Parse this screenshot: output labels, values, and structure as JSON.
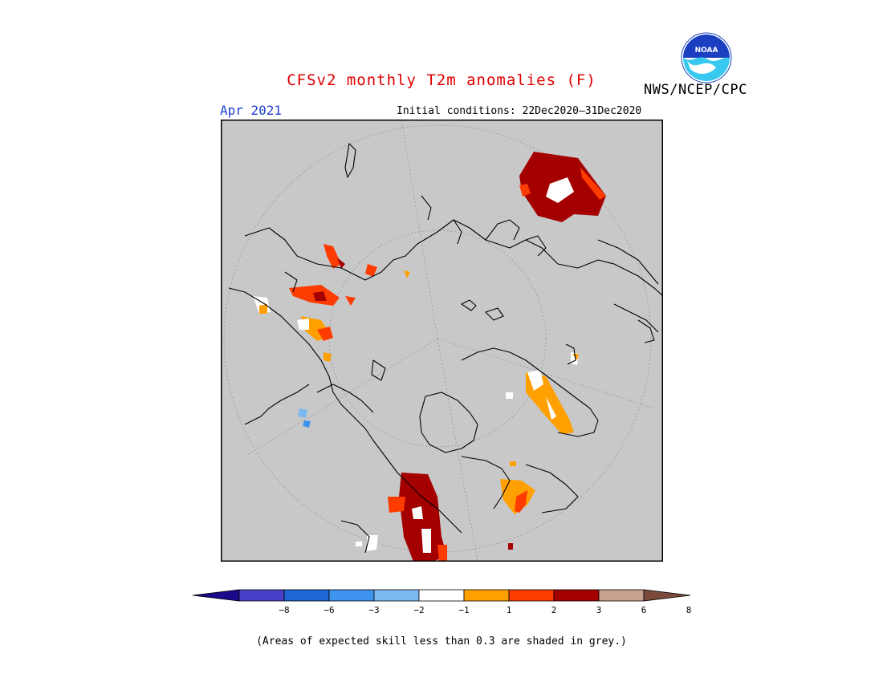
{
  "header": {
    "title": "CFSv2 monthly T2m anomalies (F)",
    "month": "Apr 2021",
    "initial_conditions": "Initial conditions: 22Dec2020–31Dec2020",
    "agency": "NWS/NCEP/CPC",
    "logo_text": "NOAA"
  },
  "legend": {
    "ticks": [
      "−8",
      "−6",
      "−3",
      "−2",
      "−1",
      "1",
      "2",
      "3",
      "6",
      "8"
    ],
    "colors": [
      "#1a0a8c",
      "#4a3fc8",
      "#1f66d6",
      "#3f94f0",
      "#7cb8f2",
      "#ffffff",
      "#ffa000",
      "#ff3c00",
      "#a50000",
      "#c8a090",
      "#7a4a3a"
    ],
    "note": "(Areas of expected skill less than 0.3 are shaded in grey.)"
  },
  "map": {
    "background_color": "#c8c8c8",
    "projection": "polar-stereographic-north"
  }
}
